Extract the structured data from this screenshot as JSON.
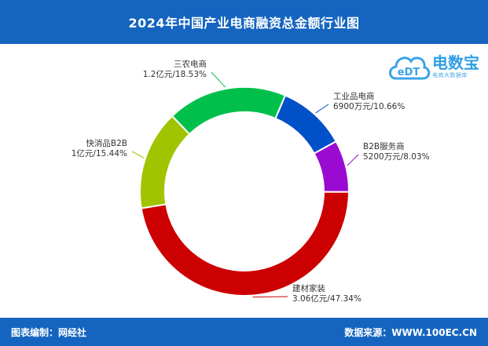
{
  "header": {
    "title": "2024年中国产业电商融资总金额行业图"
  },
  "logo": {
    "text": "电数宝",
    "sub": "电商大数据库",
    "mark": "eDT"
  },
  "footer": {
    "left": "图表编制：网经社",
    "right": "数据来源：WWW.100EC.CN"
  },
  "colors": {
    "header_bg": "#1565c0",
    "sanong": "#00c04b",
    "gongye": "#0050c8",
    "b2b_service": "#9b0ad0",
    "jiancai": "#cc0000",
    "kuaixiao": "#a0c400"
  },
  "chart_data": {
    "type": "pie",
    "donut": true,
    "title": "2024年中国产业电商融资总金额行业图",
    "unit": "",
    "slices": [
      {
        "name": "工业品电商",
        "value": 10.66,
        "amount": "6900万元",
        "label": "6900万元/10.66%",
        "color": "#0050c8"
      },
      {
        "name": "B2B服务商",
        "value": 8.03,
        "amount": "5200万元",
        "label": "5200万元/8.03%",
        "color": "#9b0ad0"
      },
      {
        "name": "建材家装",
        "value": 47.34,
        "amount": "3.06亿元",
        "label": "3.06亿元/47.34%",
        "color": "#cc0000"
      },
      {
        "name": "快消品B2B",
        "value": 15.44,
        "amount": "1亿元",
        "label": "1亿元/15.44%",
        "color": "#a0c400"
      },
      {
        "name": "三农电商",
        "value": 18.53,
        "amount": "1.2亿元",
        "label": "1.2亿元/18.53%",
        "color": "#00c04b"
      }
    ]
  }
}
